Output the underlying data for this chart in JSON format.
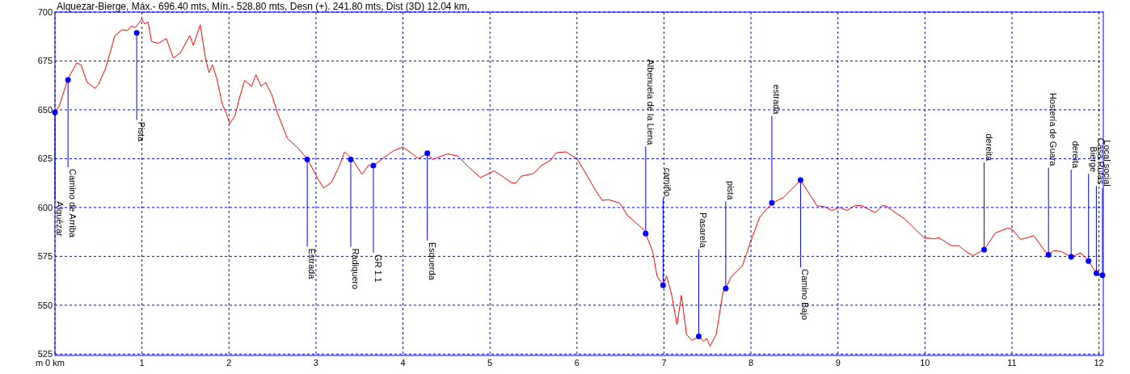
{
  "chart_data": {
    "type": "line",
    "title": "Alquezar-Bierge, Máx.- 696.40 mts, Mín.- 528.80 mts, Desn (+). 241.80 mts, Dist (3D) 12.04 km,",
    "ylabel": "m",
    "xlim": [
      0,
      12.05
    ],
    "xticks": [
      {
        "value": 0,
        "label": "0 km"
      },
      1,
      2,
      3,
      4,
      5,
      6,
      7,
      8,
      9,
      10,
      11,
      12
    ],
    "ylim": [
      524.3,
      700
    ],
    "yticks": [
      525,
      550,
      575,
      600,
      625,
      650,
      675,
      700
    ],
    "grid": true,
    "series": [
      {
        "type": "line",
        "color": "#ff0000",
        "marker": "none",
        "x": [
          0,
          0.05,
          0.15,
          0.25,
          0.3,
          0.37,
          0.46,
          0.5,
          0.58,
          0.69,
          0.77,
          0.83,
          0.88,
          0.92,
          1.0,
          1.03,
          1.07,
          1.11,
          1.19,
          1.28,
          1.36,
          1.44,
          1.55,
          1.59,
          1.67,
          1.73,
          1.77,
          1.81,
          1.86,
          1.92,
          1.97,
          2.01,
          2.07,
          2.12,
          2.18,
          2.26,
          2.31,
          2.37,
          2.42,
          2.49,
          2.56,
          2.67,
          2.78,
          2.9,
          3.03,
          3.09,
          3.18,
          3.27,
          3.33,
          3.42,
          3.53,
          3.61,
          3.64,
          3.75,
          3.89,
          4.0,
          4.12,
          4.18,
          4.28,
          4.34,
          4.51,
          4.63,
          4.75,
          4.89,
          5.05,
          5.25,
          5.3,
          5.36,
          5.5,
          5.59,
          5.7,
          5.76,
          5.87,
          6.0,
          6.12,
          6.21,
          6.29,
          6.36,
          6.49,
          6.58,
          6.77,
          6.79,
          6.87,
          6.92,
          6.99,
          7.03,
          7.09,
          7.15,
          7.2,
          7.26,
          7.32,
          7.4,
          7.46,
          7.49,
          7.53,
          7.6,
          7.68,
          7.71,
          7.77,
          7.9,
          8.0,
          8.1,
          8.24,
          8.37,
          8.57,
          8.76,
          8.84,
          8.93,
          9.02,
          9.1,
          9.2,
          9.27,
          9.43,
          9.51,
          9.55,
          9.77,
          9.99,
          10.11,
          10.16,
          10.3,
          10.39,
          10.47,
          10.55,
          10.68,
          10.81,
          10.95,
          11.0,
          11.1,
          11.25,
          11.39,
          11.42,
          11.48,
          11.57,
          11.68,
          11.79,
          11.88,
          11.97,
          12.04
        ],
        "values": [
          648.6,
          652,
          666,
          674,
          673,
          664,
          661,
          663,
          671,
          688,
          691,
          690.5,
          693,
          692,
          696.4,
          694,
          695,
          685,
          684,
          686.5,
          676.5,
          679,
          688,
          683,
          693.5,
          676.5,
          669,
          673,
          666,
          653.5,
          648,
          643,
          647,
          656,
          665,
          662,
          668,
          662,
          664,
          658,
          648,
          635.5,
          631,
          625,
          614,
          610,
          613,
          621.5,
          628.5,
          624.5,
          617,
          622,
          620.5,
          624.5,
          629,
          631,
          627,
          625,
          627.8,
          624.6,
          627.4,
          626.4,
          620.9,
          615.3,
          618.8,
          612.6,
          612.6,
          616,
          617.4,
          621.5,
          624.3,
          628,
          628.5,
          625,
          616,
          609,
          603.6,
          604,
          602.3,
          596,
          588.5,
          586.6,
          577.5,
          565,
          560,
          565,
          555,
          540,
          555,
          535,
          532,
          534,
          531.5,
          533,
          529,
          535,
          557,
          558.5,
          564.5,
          570,
          583,
          595,
          602.3,
          605,
          614,
          600.8,
          600.5,
          598.5,
          600,
          598.5,
          601,
          601,
          597.3,
          601,
          600.8,
          594,
          584.5,
          584,
          584.6,
          580.5,
          580.5,
          577.5,
          575.4,
          578.4,
          587,
          589.4,
          589,
          583.6,
          585.6,
          577,
          575.8,
          578,
          577.4,
          574.7,
          576.8,
          572.6,
          566.4,
          565.3
        ]
      },
      {
        "type": "scatter",
        "color": "#0000ff",
        "marker": "circle",
        "x": [
          0,
          0.15,
          0.94,
          2.9,
          3.4,
          3.66,
          4.28,
          6.79,
          6.99,
          7.4,
          7.71,
          8.24,
          8.57,
          10.68,
          11.42,
          11.68,
          11.88,
          11.97,
          12.04
        ],
        "values": [
          648.6,
          665.3,
          689.4,
          624.6,
          624.6,
          621.5,
          627.8,
          586.6,
          560.2,
          534,
          558.5,
          602.3,
          614,
          578.4,
          575.8,
          574.7,
          572.6,
          566.4,
          565.3
        ]
      }
    ],
    "annotations": [
      {
        "text": "Alquézar",
        "x": 0,
        "y": 648.6
      },
      {
        "text": "Camino de Arriba",
        "x": 0.15,
        "y": 665.3
      },
      {
        "text": "Pista",
        "x": 0.94,
        "y": 689.4
      },
      {
        "text": "Estrada",
        "x": 2.9,
        "y": 624.6
      },
      {
        "text": "Radiquero",
        "x": 3.4,
        "y": 624.6
      },
      {
        "text": "GR 1.1",
        "x": 3.66,
        "y": 621.5
      },
      {
        "text": "Esquerda",
        "x": 4.28,
        "y": 627.8
      },
      {
        "text": "Albenuela de la Liena",
        "x": 6.79,
        "y": 586.6
      },
      {
        "text": "camiño",
        "x": 6.99,
        "y": 560.2
      },
      {
        "text": "Pasarela",
        "x": 7.4,
        "y": 534
      },
      {
        "text": "pista",
        "x": 7.71,
        "y": 558.5
      },
      {
        "text": "estrada",
        "x": 8.24,
        "y": 602.3
      },
      {
        "text": "Camino Bajo",
        "x": 8.57,
        "y": 614
      },
      {
        "text": "dereita",
        "x": 10.68,
        "y": 578.4
      },
      {
        "text": "Hostería de Guara",
        "x": 11.42,
        "y": 575.8
      },
      {
        "text": "dereita",
        "x": 11.68,
        "y": 574.7
      },
      {
        "text": "Bierge",
        "x": 11.88,
        "y": 572.6
      },
      {
        "text": "Casa Rufas",
        "x": 11.97,
        "y": 566.4
      },
      {
        "text": "Local social",
        "x": 12.04,
        "y": 565.3
      }
    ]
  }
}
